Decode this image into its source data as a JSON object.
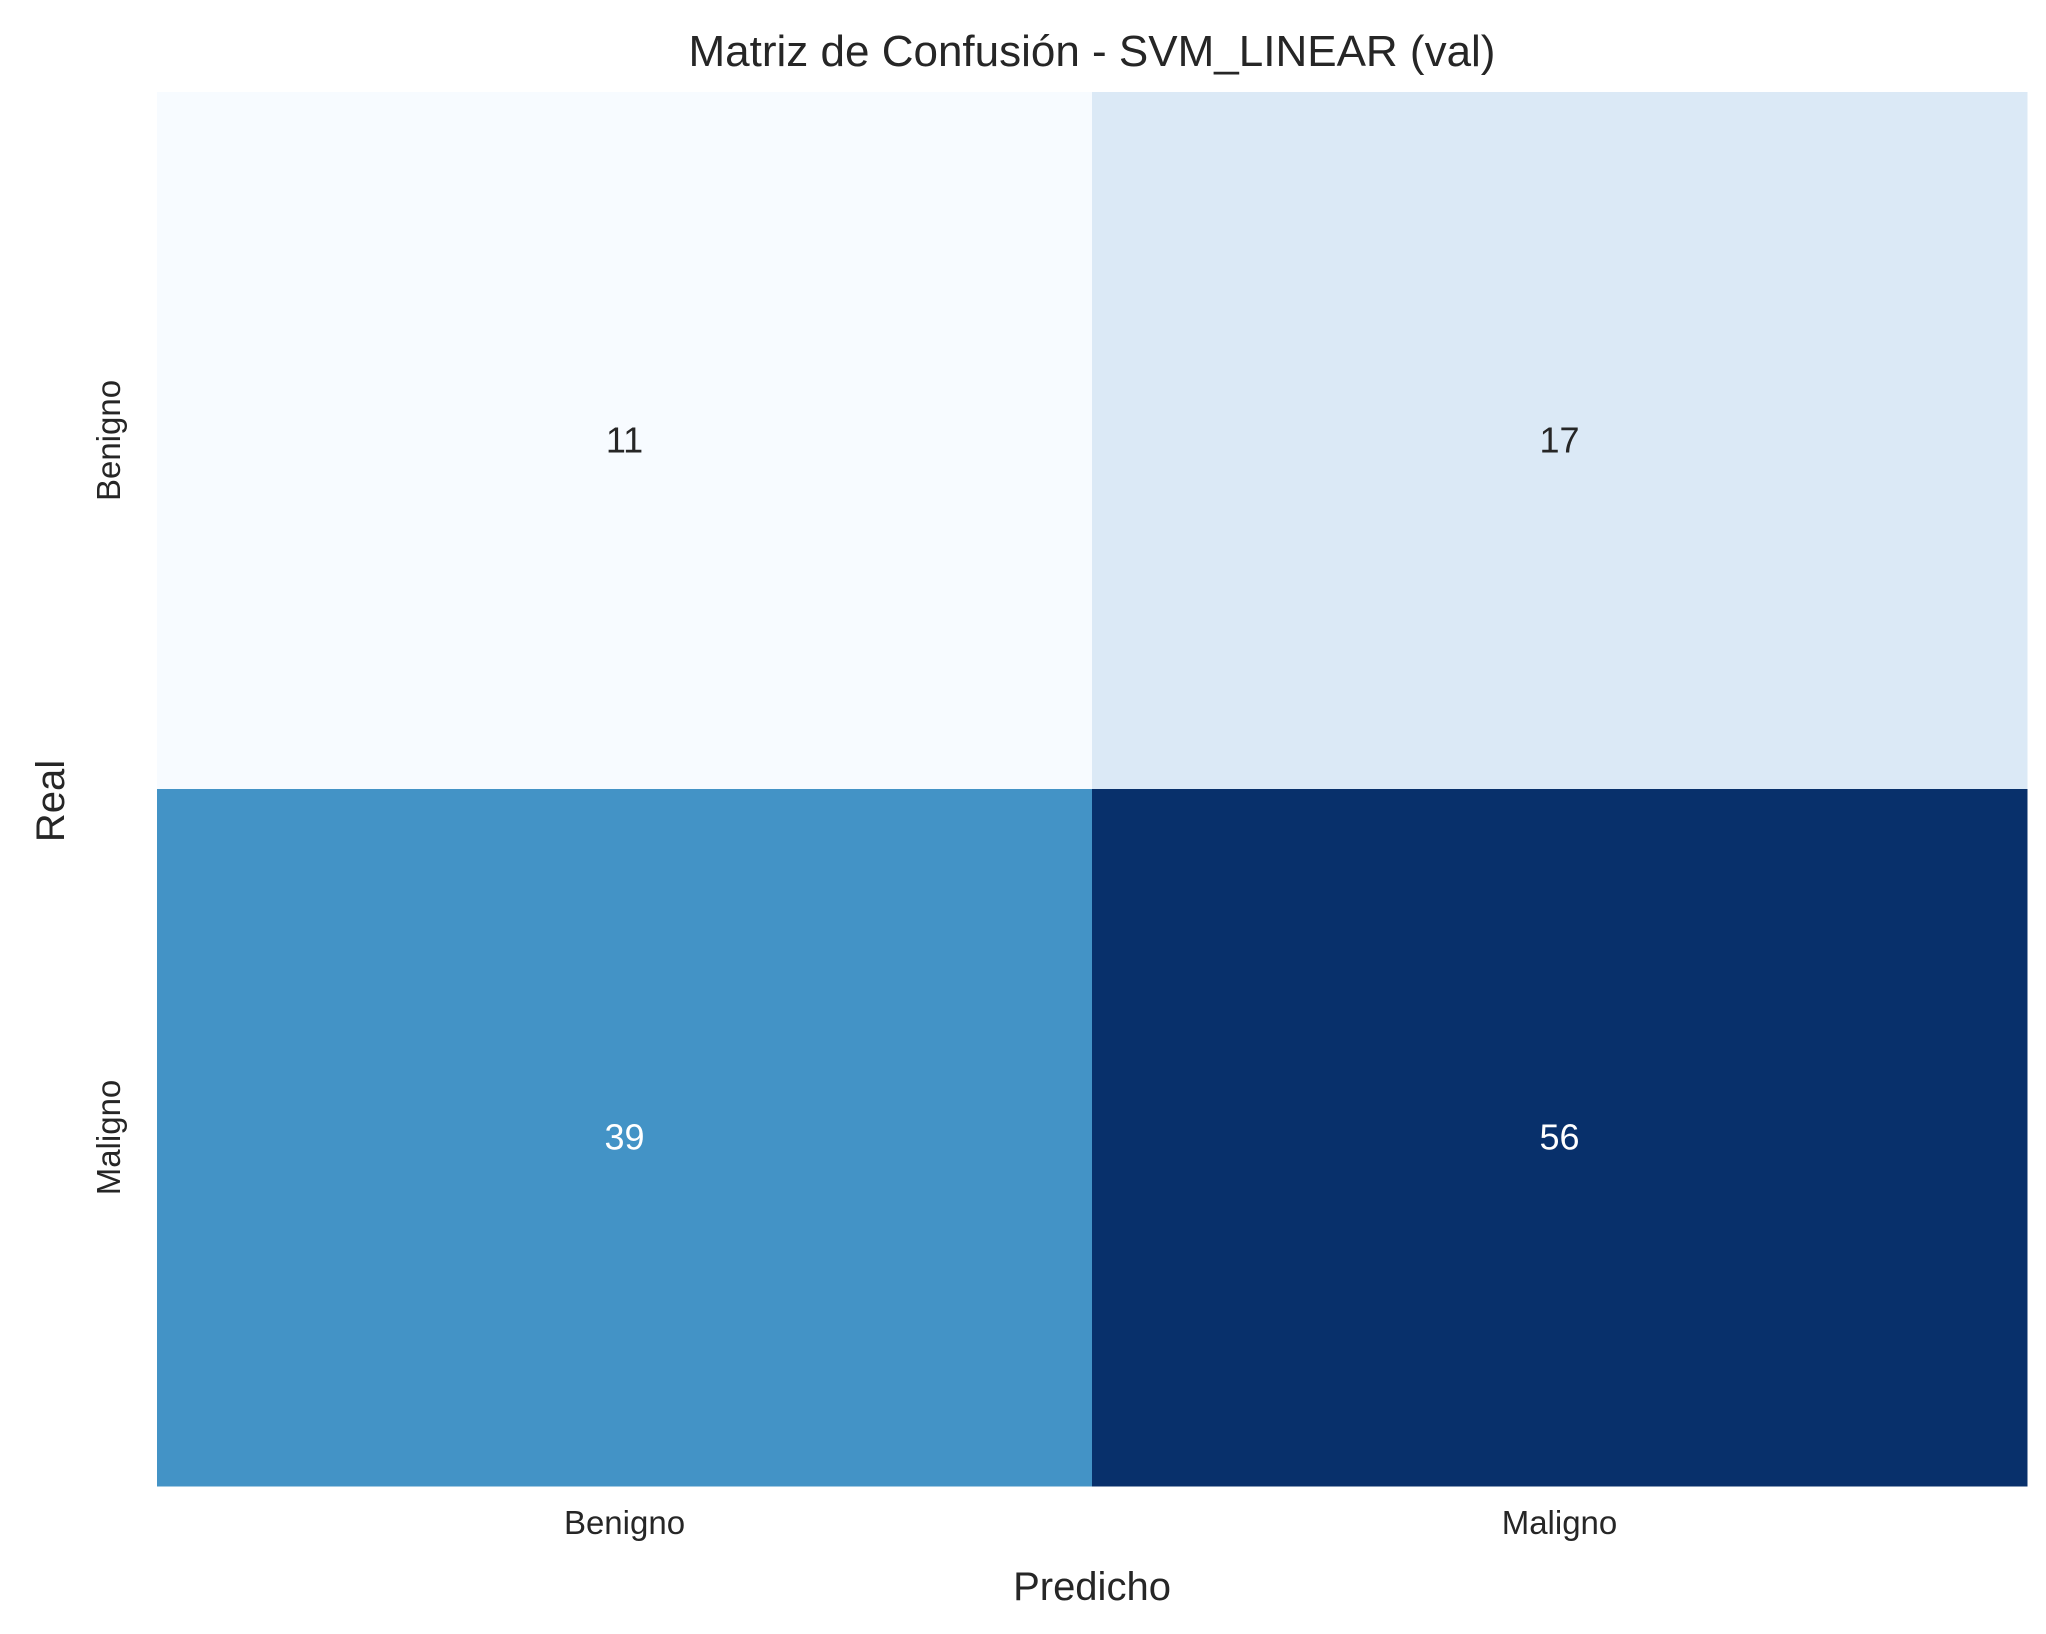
{
  "chart_data": {
    "type": "heatmap",
    "title": "Matriz de Confusión - SVM_LINEAR (val)",
    "xlabel": "Predicho",
    "ylabel": "Real",
    "x_categories": [
      "Benigno",
      "Maligno"
    ],
    "y_categories": [
      "Benigno",
      "Maligno"
    ],
    "values": [
      [
        11,
        17
      ],
      [
        39,
        56
      ]
    ],
    "colormap": "Blues",
    "colorbar": false,
    "cell_colors": [
      [
        "#f7fbff",
        "#dbe9f6"
      ],
      [
        "#4393c6",
        "#08306b"
      ]
    ],
    "cell_text_colors": [
      [
        "#262626",
        "#262626"
      ],
      [
        "#ffffff",
        "#ffffff"
      ]
    ]
  }
}
